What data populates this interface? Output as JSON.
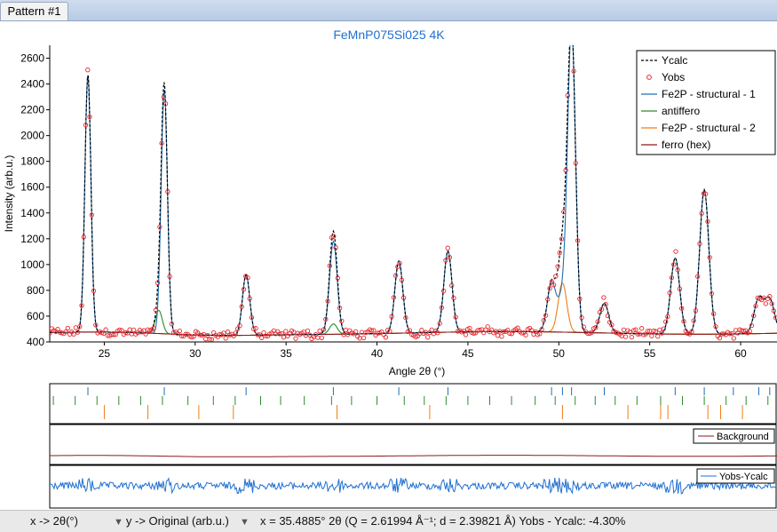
{
  "tab": {
    "label": "Pattern #1"
  },
  "status": {
    "x_mode": "x -> 2θ(°)",
    "y_mode": "y -> Original (arb.u.)",
    "readout": "x = 35.4885° 2θ (Q = 2.61994 Å⁻¹; d = 2.39821 Å) Yobs - Ycalc: -4.30%"
  },
  "colors": {
    "title": "#1f6fd1",
    "ycalc": "#000000",
    "yobs": "#e8262a",
    "fe2p_1": "#1f6fb4",
    "antiffero": "#2e8b2e",
    "fe2p_2": "#f07d16",
    "ferro": "#8b1a1a",
    "diff": "#1f6fd1"
  },
  "chart_data": {
    "type": "line",
    "title": "FeMnP075Si025 4K",
    "xlabel": "Angle 2θ (°)",
    "ylabel": "Intensity (arb.u.)",
    "xlim": [
      22,
      62
    ],
    "ylim": [
      400,
      2700
    ],
    "xticks": [
      25,
      30,
      35,
      40,
      45,
      50,
      55,
      60
    ],
    "yticks": [
      400,
      600,
      800,
      1000,
      1200,
      1400,
      1600,
      1800,
      2000,
      2200,
      2400,
      2600
    ],
    "legend_position": "top-right",
    "legend": [
      "Ycalc",
      "Yobs",
      "Fe2P - structural - 1",
      "antiffero",
      "Fe2P - structural - 2",
      "ferro (hex)"
    ],
    "background_level": 470,
    "peaks": [
      {
        "x": 24.1,
        "height": 2000,
        "phase": "Fe2P - structural - 1"
      },
      {
        "x": 28.3,
        "height": 1900,
        "phase": "Fe2P - structural - 1"
      },
      {
        "x": 28.0,
        "height": 180,
        "phase": "antiffero"
      },
      {
        "x": 32.8,
        "height": 470,
        "phase": "Fe2P - structural - 1"
      },
      {
        "x": 37.6,
        "height": 720,
        "phase": "Fe2P - structural - 1"
      },
      {
        "x": 37.6,
        "height": 80,
        "phase": "antiffero"
      },
      {
        "x": 41.2,
        "height": 560,
        "phase": "Fe2P - structural - 1"
      },
      {
        "x": 43.9,
        "height": 630,
        "phase": "Fe2P - structural - 1"
      },
      {
        "x": 49.6,
        "height": 380,
        "phase": "Fe2P - structural - 1"
      },
      {
        "x": 50.2,
        "height": 380,
        "phase": "Fe2P - structural - 2"
      },
      {
        "x": 50.2,
        "height": 250,
        "phase": "Fe2P - structural - 1"
      },
      {
        "x": 50.7,
        "height": 2350,
        "phase": "Fe2P - structural - 1"
      },
      {
        "x": 52.5,
        "height": 230,
        "phase": "Fe2P - structural - 1"
      },
      {
        "x": 56.4,
        "height": 590,
        "phase": "Fe2P - structural - 1"
      },
      {
        "x": 58.0,
        "height": 1120,
        "phase": "Fe2P - structural - 1"
      },
      {
        "x": 61.0,
        "height": 270,
        "phase": "Fe2P - structural - 1"
      },
      {
        "x": 61.6,
        "height": 260,
        "phase": "Fe2P - structural - 1"
      }
    ],
    "reflection_ticks": {
      "Fe2P - structural - 1": [
        24.1,
        28.3,
        32.8,
        37.6,
        41.2,
        43.9,
        49.6,
        50.2,
        50.7,
        52.5,
        56.4,
        58.0,
        59.6,
        61.0,
        61.6
      ],
      "antiffero": [
        22.2,
        23.4,
        24.6,
        25.8,
        27.0,
        28.2,
        29.6,
        31.0,
        32.2,
        33.6,
        34.7,
        36.0,
        37.5,
        38.6,
        40.0,
        41.5,
        42.6,
        43.8,
        45.0,
        46.2,
        47.4,
        48.7,
        49.8,
        50.9,
        52.0,
        53.1,
        54.3,
        55.6,
        56.8,
        58.0,
        59.2,
        60.3,
        61.5
      ],
      "Fe2P - structural - 2": [
        25.0,
        27.4,
        30.2,
        32.1,
        37.8,
        42.9,
        50.2,
        53.8,
        55.6,
        56.0,
        58.2,
        58.9,
        60.1
      ]
    },
    "panels": [
      {
        "name": "Background",
        "type": "line"
      },
      {
        "name": "Yobs-Ycalc",
        "type": "line"
      }
    ]
  }
}
